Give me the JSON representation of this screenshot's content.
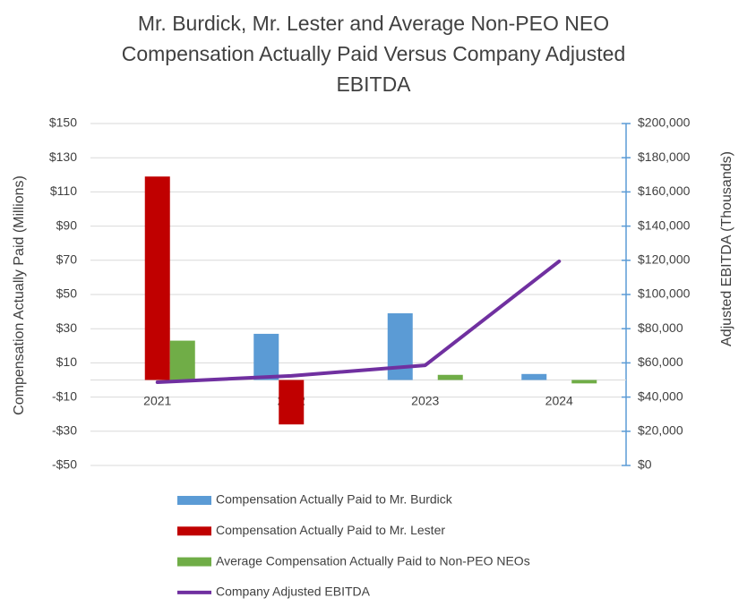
{
  "chart_data": {
    "type": "bar",
    "title_lines": [
      "Mr. Burdick, Mr. Lester and Average Non-PEO NEO",
      "Compensation Actually Paid Versus Company Adjusted",
      "EBITDA"
    ],
    "y_label": "Compensation Actually Paid (Millions)",
    "y2_label": "Adjusted EBITDA (Thousands)",
    "categories": [
      "2021",
      "2022",
      "2023",
      "2024"
    ],
    "ylim": [
      -50,
      150
    ],
    "yticks": [
      {
        "value": -50,
        "label": "-$50"
      },
      {
        "value": -30,
        "label": "-$30"
      },
      {
        "value": -10,
        "label": "-$10"
      },
      {
        "value": 10,
        "label": "$10"
      },
      {
        "value": 30,
        "label": "$30"
      },
      {
        "value": 50,
        "label": "$50"
      },
      {
        "value": 70,
        "label": "$70"
      },
      {
        "value": 90,
        "label": "$90"
      },
      {
        "value": 110,
        "label": "$110"
      },
      {
        "value": 130,
        "label": "$130"
      },
      {
        "value": 150,
        "label": "$150"
      }
    ],
    "y2lim": [
      0,
      200000
    ],
    "y2ticks": [
      {
        "value": 0,
        "label": "$0"
      },
      {
        "value": 20000,
        "label": "$20,000"
      },
      {
        "value": 40000,
        "label": "$40,000"
      },
      {
        "value": 60000,
        "label": "$60,000"
      },
      {
        "value": 80000,
        "label": "$80,000"
      },
      {
        "value": 100000,
        "label": "$100,000"
      },
      {
        "value": 120000,
        "label": "$120,000"
      },
      {
        "value": 140000,
        "label": "$140,000"
      },
      {
        "value": 160000,
        "label": "$160,000"
      },
      {
        "value": 180000,
        "label": "$180,000"
      },
      {
        "value": 200000,
        "label": "$200,000"
      }
    ],
    "grid": true,
    "series": [
      {
        "name": "Compensation Actually Paid to Mr. Burdick",
        "color": "#5b9bd5",
        "type": "bar",
        "values": [
          0,
          27,
          39,
          3.5
        ]
      },
      {
        "name": "Compensation Actually Paid to Mr. Lester",
        "color": "#c00000",
        "type": "bar",
        "values": [
          119,
          -26,
          0,
          0
        ]
      },
      {
        "name": "Average Compensation Actually Paid to Non-PEO NEOs",
        "color": "#70ad47",
        "type": "bar",
        "values": [
          23,
          0,
          3,
          -2
        ]
      },
      {
        "name": "Company Adjusted EBITDA",
        "color": "#7030a0",
        "type": "line",
        "axis": "y2",
        "values": [
          48700,
          52400,
          58600,
          119400
        ]
      }
    ]
  }
}
